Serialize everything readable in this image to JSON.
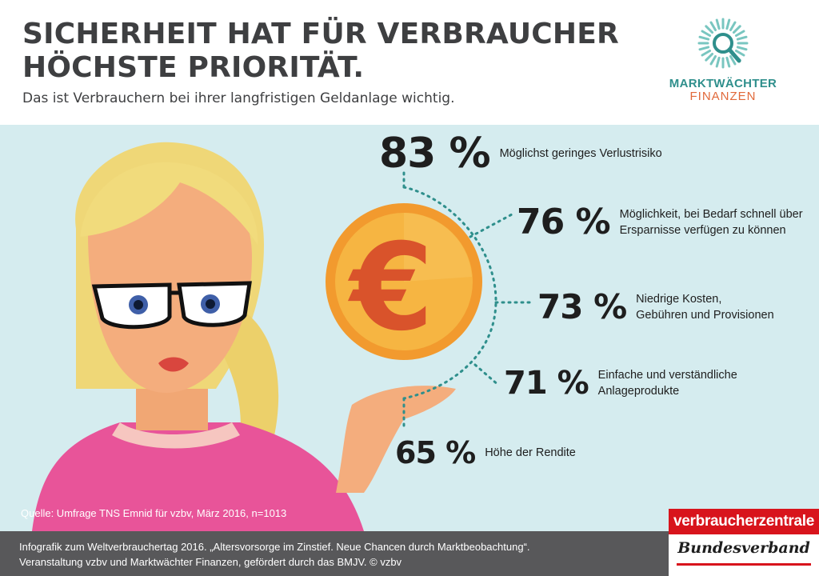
{
  "header": {
    "title_line1": "SICHERHEIT HAT FÜR VERBRAUCHER",
    "title_line2": "HÖCHSTE PRIORITÄT.",
    "subtitle": "Das ist Verbrauchern bei ihrer langfristigen Geldanlage wichtig."
  },
  "logo": {
    "line1": "MARKTWÄCHTER",
    "line2": "FINANZEN",
    "icon": "magnifier-sunburst-icon"
  },
  "illustration": {
    "coin_symbol": "€"
  },
  "chart_data": {
    "type": "bar",
    "categories": [
      "Möglichst geringes Verlustrisiko",
      "Möglichkeit, bei Bedarf schnell über Ersparnisse verfügen zu können",
      "Niedrige Kosten, Gebühren und Provisionen",
      "Einfache und verständliche Anlageprodukte",
      "Höhe der Rendite"
    ],
    "values": [
      83,
      76,
      73,
      71,
      65
    ],
    "value_labels": [
      "83 %",
      "76 %",
      "73 %",
      "71 %",
      "65 %"
    ],
    "label_lines": [
      "Möglichst geringes Verlustrisiko",
      "Möglichkeit, bei Bedarf schnell über\nErsparnisse verfügen zu können",
      "Niedrige Kosten,\nGebühren und Provisionen",
      "Einfache und verständliche\nAnlageprodukte",
      "Höhe der Rendite"
    ],
    "unit": "%"
  },
  "source": "Quelle: Umfrage TNS Emnid für vzbv, März 2016, n=1013",
  "footer": {
    "text": "Infografik zum Weltverbrauchertag 2016. „Altersvorsorge im Zinstief. Neue Chancen durch Marktbeobachtung“.\nVeranstaltung vzbv und Marktwächter Finanzen, gefördert durch das BMJV. © vzbv"
  },
  "brand": {
    "top": "verbraucherzentrale",
    "bottom": "Bundesverband"
  },
  "colors": {
    "background_panel": "#d5ecef",
    "title": "#3e3f41",
    "dots": "#2f8f8c",
    "coin": "#f29a2e",
    "euro": "#d9532b",
    "footer": "#58585a",
    "brand_red": "#d8141c"
  }
}
